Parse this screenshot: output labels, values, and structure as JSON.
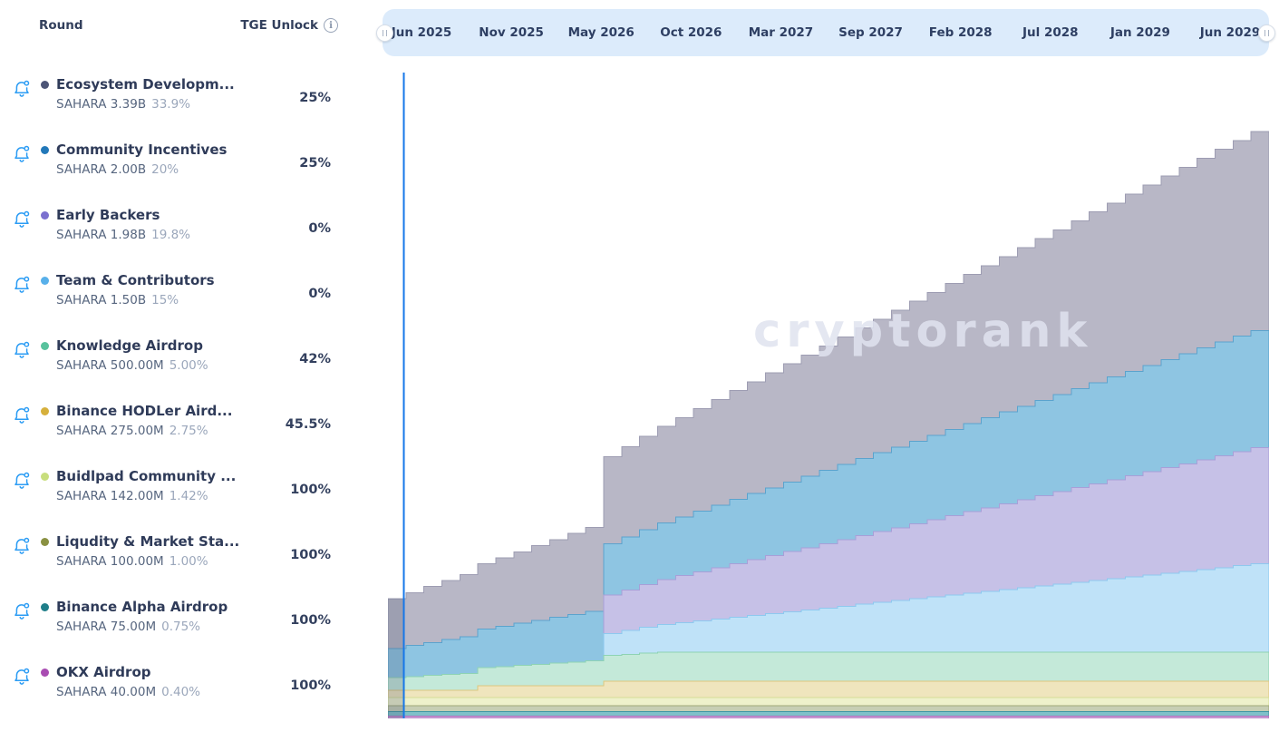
{
  "list": {
    "round_header": "Round",
    "tge_header": "TGE Unlock",
    "rows": [
      {
        "name": "Ecosystem Developm...",
        "amount": "SAHARA 3.39B",
        "share": "33.9%",
        "tge": "25%",
        "dot": "#4c5576"
      },
      {
        "name": "Community Incentives",
        "amount": "SAHARA 2.00B",
        "share": "20%",
        "tge": "25%",
        "dot": "#2278b9"
      },
      {
        "name": "Early Backers",
        "amount": "SAHARA 1.98B",
        "share": "19.8%",
        "tge": "0%",
        "dot": "#7b70cf"
      },
      {
        "name": "Team & Contributors",
        "amount": "SAHARA 1.50B",
        "share": "15%",
        "tge": "0%",
        "dot": "#58b0ea"
      },
      {
        "name": "Knowledge Airdrop",
        "amount": "SAHARA 500.00M",
        "share": "5.00%",
        "tge": "42%",
        "dot": "#58c29d"
      },
      {
        "name": "Binance HODLer Aird...",
        "amount": "SAHARA 275.00M",
        "share": "2.75%",
        "tge": "45.5%",
        "dot": "#d6b03c"
      },
      {
        "name": "Buidlpad Community ...",
        "amount": "SAHARA 142.00M",
        "share": "1.42%",
        "tge": "100%",
        "dot": "#c8de7d"
      },
      {
        "name": "Liqudity & Market Sta...",
        "amount": "SAHARA 100.00M",
        "share": "1.00%",
        "tge": "100%",
        "dot": "#8a9142"
      },
      {
        "name": "Binance Alpha Airdrop",
        "amount": "SAHARA 75.00M",
        "share": "0.75%",
        "tge": "100%",
        "dot": "#1f7e89"
      },
      {
        "name": "OKX Airdrop",
        "amount": "SAHARA 40.00M",
        "share": "0.40%",
        "tge": "100%",
        "dot": "#a94cb2"
      }
    ]
  },
  "timeline": {
    "labels": [
      "Jun 2025",
      "Nov 2025",
      "May 2026",
      "Oct 2026",
      "Mar 2027",
      "Sep 2027",
      "Feb 2028",
      "Jul 2028",
      "Jan 2029",
      "Jun 2029"
    ]
  },
  "watermark": "cryptorank",
  "colors": {
    "timeline_bg": "#dcebfb",
    "now_line": "#1677e8",
    "bell": "#2b9cf4",
    "first_column_tint": "rgba(72,85,111,0.24)"
  },
  "chart_data": {
    "type": "area",
    "stacked": true,
    "step": "monthly",
    "title": "SAHARA token unlock schedule (cumulative unlocked tokens, millions)",
    "x_start_label": "Jun 2025",
    "x_end_label": "Jun 2029",
    "x_months": 49,
    "unit": "million SAHARA",
    "total_supply_m": 10000,
    "now_line_month": 0.88,
    "legend_position": "left",
    "grid": false,
    "series": [
      {
        "name": "OKX Airdrop",
        "fill": "#cba5d6",
        "stroke": "#b06cbd",
        "values": [
          40,
          40,
          40,
          40,
          40,
          40,
          40,
          40,
          40,
          40,
          40,
          40,
          40,
          40,
          40,
          40,
          40,
          40,
          40,
          40,
          40,
          40,
          40,
          40,
          40,
          40,
          40,
          40,
          40,
          40,
          40,
          40,
          40,
          40,
          40,
          40,
          40,
          40,
          40,
          40,
          40,
          40,
          40,
          40,
          40,
          40,
          40,
          40,
          40
        ]
      },
      {
        "name": "Binance Alpha Airdrop",
        "fill": "#7fc0c9",
        "stroke": "#3d97a4",
        "values": [
          75,
          75,
          75,
          75,
          75,
          75,
          75,
          75,
          75,
          75,
          75,
          75,
          75,
          75,
          75,
          75,
          75,
          75,
          75,
          75,
          75,
          75,
          75,
          75,
          75,
          75,
          75,
          75,
          75,
          75,
          75,
          75,
          75,
          75,
          75,
          75,
          75,
          75,
          75,
          75,
          75,
          75,
          75,
          75,
          75,
          75,
          75,
          75,
          75
        ]
      },
      {
        "name": "Liqudity & Market Sta...",
        "fill": "#c7ceb4",
        "stroke": "#a0a878",
        "values": [
          100,
          100,
          100,
          100,
          100,
          100,
          100,
          100,
          100,
          100,
          100,
          100,
          100,
          100,
          100,
          100,
          100,
          100,
          100,
          100,
          100,
          100,
          100,
          100,
          100,
          100,
          100,
          100,
          100,
          100,
          100,
          100,
          100,
          100,
          100,
          100,
          100,
          100,
          100,
          100,
          100,
          100,
          100,
          100,
          100,
          100,
          100,
          100,
          100
        ]
      },
      {
        "name": "Buidlpad Community ...",
        "fill": "#eef1cb",
        "stroke": "#d4dd96",
        "values": [
          142,
          142,
          142,
          142,
          142,
          142,
          142,
          142,
          142,
          142,
          142,
          142,
          142,
          142,
          142,
          142,
          142,
          142,
          142,
          142,
          142,
          142,
          142,
          142,
          142,
          142,
          142,
          142,
          142,
          142,
          142,
          142,
          142,
          142,
          142,
          142,
          142,
          142,
          142,
          142,
          142,
          142,
          142,
          142,
          142,
          142,
          142,
          142,
          142
        ]
      },
      {
        "name": "Binance HODLer Aird...",
        "fill": "#efe5bd",
        "stroke": "#ddc87f",
        "values": [
          125,
          125,
          125,
          125,
          125,
          200,
          200,
          200,
          200,
          200,
          200,
          200,
          275,
          275,
          275,
          275,
          275,
          275,
          275,
          275,
          275,
          275,
          275,
          275,
          275,
          275,
          275,
          275,
          275,
          275,
          275,
          275,
          275,
          275,
          275,
          275,
          275,
          275,
          275,
          275,
          275,
          275,
          275,
          275,
          275,
          275,
          275,
          275,
          275
        ]
      },
      {
        "name": "Knowledge Airdrop",
        "fill": "#c4e9d9",
        "stroke": "#8ed3b4",
        "values": [
          210,
          229,
          249,
          268,
          287,
          307,
          326,
          345,
          365,
          384,
          403,
          423,
          442,
          461,
          481,
          500,
          500,
          500,
          500,
          500,
          500,
          500,
          500,
          500,
          500,
          500,
          500,
          500,
          500,
          500,
          500,
          500,
          500,
          500,
          500,
          500,
          500,
          500,
          500,
          500,
          500,
          500,
          500,
          500,
          500,
          500,
          500,
          500,
          500
        ]
      },
      {
        "name": "Team & Contributors",
        "fill": "#bfe2f8",
        "stroke": "#8ec9ef",
        "values": [
          0,
          0,
          0,
          0,
          0,
          0,
          0,
          0,
          0,
          0,
          0,
          0,
          375,
          406,
          438,
          469,
          500,
          531,
          563,
          594,
          625,
          656,
          688,
          719,
          750,
          781,
          813,
          844,
          875,
          906,
          938,
          969,
          1000,
          1031,
          1063,
          1094,
          1125,
          1156,
          1188,
          1219,
          1250,
          1281,
          1313,
          1344,
          1375,
          1406,
          1438,
          1469,
          1500
        ]
      },
      {
        "name": "Early Backers",
        "fill": "#c6c1e7",
        "stroke": "#a89fd8",
        "values": [
          0,
          0,
          0,
          0,
          0,
          0,
          0,
          0,
          0,
          0,
          0,
          0,
          653,
          690,
          727,
          764,
          800,
          837,
          874,
          911,
          948,
          985,
          1022,
          1059,
          1095,
          1132,
          1169,
          1206,
          1243,
          1280,
          1316,
          1353,
          1390,
          1427,
          1464,
          1501,
          1537,
          1574,
          1611,
          1648,
          1685,
          1722,
          1758,
          1795,
          1832,
          1869,
          1906,
          1943,
          1980
        ]
      },
      {
        "name": "Community Incentives",
        "fill": "#8ec5e2",
        "stroke": "#5ba3cd",
        "values": [
          500,
          531,
          563,
          594,
          625,
          656,
          688,
          719,
          750,
          781,
          813,
          844,
          875,
          906,
          938,
          969,
          1000,
          1031,
          1063,
          1094,
          1125,
          1156,
          1188,
          1219,
          1250,
          1281,
          1313,
          1344,
          1375,
          1406,
          1438,
          1469,
          1500,
          1531,
          1563,
          1594,
          1625,
          1656,
          1688,
          1719,
          1750,
          1781,
          1813,
          1844,
          1875,
          1906,
          1938,
          1969,
          2000
        ]
      },
      {
        "name": "Ecosystem Developm...",
        "fill": "#b8b7c6",
        "stroke": "#9d9cb2",
        "values": [
          848,
          900,
          953,
          1006,
          1059,
          1112,
          1165,
          1218,
          1271,
          1324,
          1377,
          1430,
          1483,
          1536,
          1589,
          1642,
          1695,
          1748,
          1801,
          1854,
          1907,
          1960,
          2013,
          2066,
          2119,
          2172,
          2225,
          2278,
          2331,
          2384,
          2437,
          2490,
          2543,
          2596,
          2649,
          2702,
          2755,
          2808,
          2861,
          2914,
          2967,
          3020,
          3073,
          3126,
          3179,
          3231,
          3284,
          3337,
          3390
        ]
      }
    ]
  }
}
